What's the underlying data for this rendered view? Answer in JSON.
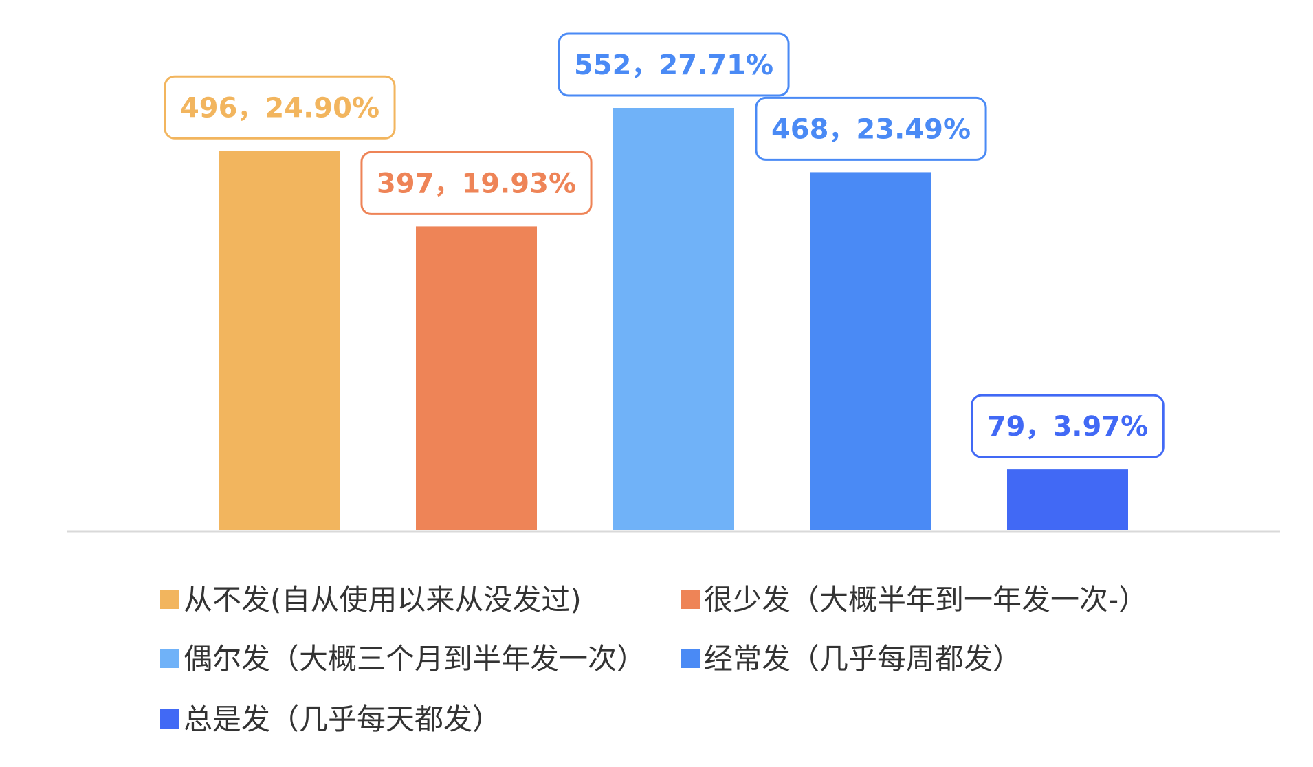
{
  "chart_data": {
    "type": "bar",
    "categories": [
      "从不发(自从使用以来从没发过)",
      "很少发（大概半年到一年发一次-）",
      "偶尔发（大概三个月到半年发一次）",
      "经常发（几乎每周都发）",
      "总是发（几乎每天都发）"
    ],
    "values": [
      496,
      397,
      552,
      468,
      79
    ],
    "percentages": [
      "24.90%",
      "19.93%",
      "27.71%",
      "23.49%",
      "3.97%"
    ],
    "data_labels": [
      "496，24.90%",
      "397，19.93%",
      "552，27.71%",
      "468，23.49%",
      "79，3.97%"
    ],
    "colors": [
      "#F2B55E",
      "#EE8457",
      "#70B2F8",
      "#4A8AF5",
      "#4169F5"
    ],
    "title": "",
    "xlabel": "",
    "ylabel": "",
    "ylim": [
      0,
      552
    ],
    "grid": false,
    "axis_line": true,
    "legend_placement": "bottom",
    "legend": {
      "entries": [
        "从不发(自从使用以来从没发过)",
        "很少发（大概半年到一年发一次-）",
        "偶尔发（大概三个月到半年发一次）",
        "经常发（几乎每周都发）",
        "总是发（几乎每天都发）"
      ]
    }
  }
}
